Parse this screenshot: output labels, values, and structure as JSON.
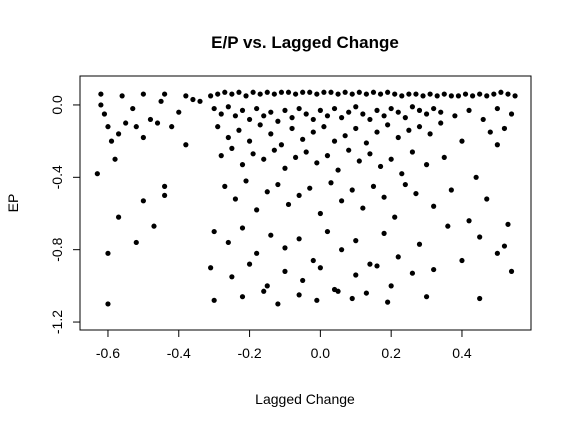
{
  "chart_data": {
    "type": "scatter",
    "title": "E/P vs. Lagged Change",
    "xlabel": "Lagged Change",
    "ylabel": "EP",
    "color": "#000000",
    "xlim": [
      -0.679,
      0.595
    ],
    "ylim": [
      -1.244,
      0.16
    ],
    "xticks": [
      -0.6,
      -0.4,
      -0.2,
      {
        "value": 0,
        "label": "0.0"
      },
      0.2,
      0.4
    ],
    "yticks": [
      -1.2,
      -0.8,
      -0.4,
      {
        "value": 0,
        "label": "0.0"
      }
    ],
    "x": [
      -0.63,
      -0.6,
      -0.6,
      -0.57,
      -0.52,
      -0.5,
      -0.47,
      -0.44,
      -0.44,
      -0.62,
      -0.61,
      -0.6,
      -0.59,
      -0.58,
      -0.55,
      -0.53,
      -0.5,
      -0.48,
      -0.45,
      -0.42,
      -0.4,
      -0.38,
      -0.36,
      -0.62,
      -0.56,
      -0.5,
      -0.44,
      -0.38,
      -0.34,
      -0.57,
      -0.52,
      -0.46,
      -0.31,
      -0.29,
      -0.27,
      -0.25,
      -0.23,
      -0.21,
      -0.19,
      -0.17,
      -0.15,
      -0.13,
      -0.11,
      -0.09,
      -0.07,
      -0.05,
      -0.03,
      -0.01,
      0.01,
      0.03,
      0.05,
      0.07,
      0.09,
      0.11,
      0.13,
      0.15,
      0.17,
      0.19,
      0.21,
      0.23,
      0.25,
      0.27,
      0.29,
      0.31,
      0.33,
      0.35,
      0.37,
      0.39,
      0.41,
      0.43,
      0.45,
      0.47,
      0.49,
      0.51,
      0.53,
      0.55,
      -0.3,
      -0.28,
      -0.26,
      -0.24,
      -0.22,
      -0.2,
      -0.18,
      -0.16,
      -0.14,
      -0.12,
      -0.1,
      -0.08,
      -0.06,
      -0.04,
      -0.02,
      0.0,
      0.02,
      0.04,
      0.06,
      0.08,
      0.1,
      0.12,
      0.14,
      0.16,
      0.18,
      0.2,
      0.22,
      0.24,
      0.26,
      0.28,
      0.3,
      0.32,
      0.34,
      0.38,
      0.42,
      0.46,
      0.5,
      0.54,
      -0.29,
      -0.26,
      -0.23,
      -0.2,
      -0.17,
      -0.14,
      -0.11,
      -0.08,
      -0.05,
      -0.02,
      0.01,
      0.04,
      0.07,
      0.1,
      0.13,
      0.16,
      0.19,
      0.22,
      0.25,
      0.28,
      0.31,
      0.34,
      0.4,
      0.48,
      0.52,
      -0.28,
      -0.25,
      -0.22,
      -0.19,
      -0.16,
      -0.13,
      -0.1,
      -0.07,
      -0.04,
      -0.01,
      0.02,
      0.05,
      0.08,
      0.11,
      0.14,
      0.17,
      0.2,
      0.23,
      0.26,
      0.3,
      0.35,
      0.44,
      0.5,
      -0.27,
      -0.24,
      -0.21,
      -0.18,
      -0.15,
      -0.12,
      -0.09,
      -0.06,
      -0.03,
      0.0,
      0.03,
      0.06,
      0.09,
      0.12,
      0.15,
      0.18,
      0.21,
      0.24,
      0.27,
      0.32,
      0.37,
      0.42,
      0.47,
      0.53,
      -0.3,
      -0.26,
      -0.22,
      -0.18,
      -0.14,
      -0.1,
      -0.06,
      -0.02,
      0.02,
      0.06,
      0.1,
      0.14,
      0.18,
      0.22,
      0.28,
      0.36,
      0.45,
      0.52,
      -0.31,
      -0.25,
      -0.2,
      -0.15,
      -0.1,
      -0.05,
      0.0,
      0.05,
      0.1,
      0.16,
      0.2,
      0.26,
      0.32,
      0.4,
      0.5,
      0.54,
      -0.3,
      -0.22,
      -0.16,
      -0.12,
      -0.06,
      -0.01,
      0.04,
      0.09,
      0.13,
      0.19,
      0.3,
      0.45
    ],
    "values": [
      -0.38,
      -1.1,
      -0.82,
      -0.62,
      -0.76,
      -0.53,
      -0.67,
      -0.45,
      -0.5,
      0.0,
      -0.05,
      -0.12,
      -0.2,
      -0.3,
      -0.1,
      -0.02,
      -0.18,
      -0.08,
      0.02,
      -0.12,
      -0.04,
      -0.22,
      0.03,
      0.06,
      0.05,
      0.06,
      0.06,
      0.05,
      0.02,
      -0.16,
      -0.12,
      -0.1,
      0.05,
      0.06,
      0.07,
      0.06,
      0.07,
      0.05,
      0.07,
      0.06,
      0.07,
      0.06,
      0.07,
      0.07,
      0.06,
      0.07,
      0.07,
      0.06,
      0.07,
      0.07,
      0.06,
      0.07,
      0.06,
      0.07,
      0.06,
      0.07,
      0.06,
      0.07,
      0.06,
      0.05,
      0.06,
      0.06,
      0.05,
      0.06,
      0.05,
      0.06,
      0.05,
      0.05,
      0.06,
      0.05,
      0.06,
      0.05,
      0.06,
      0.07,
      0.06,
      0.05,
      -0.02,
      -0.05,
      -0.01,
      -0.06,
      -0.03,
      -0.08,
      -0.02,
      -0.06,
      -0.04,
      -0.09,
      -0.03,
      -0.07,
      -0.02,
      -0.05,
      -0.08,
      -0.03,
      -0.06,
      -0.02,
      -0.07,
      -0.04,
      -0.01,
      -0.05,
      -0.08,
      -0.03,
      -0.06,
      -0.02,
      -0.04,
      -0.07,
      -0.01,
      -0.03,
      -0.05,
      -0.02,
      -0.04,
      -0.06,
      -0.03,
      -0.08,
      -0.02,
      -0.05,
      -0.12,
      -0.18,
      -0.14,
      -0.2,
      -0.11,
      -0.16,
      -0.22,
      -0.13,
      -0.19,
      -0.15,
      -0.12,
      -0.2,
      -0.17,
      -0.13,
      -0.21,
      -0.15,
      -0.11,
      -0.18,
      -0.14,
      -0.12,
      -0.16,
      -0.1,
      -0.2,
      -0.15,
      -0.13,
      -0.28,
      -0.24,
      -0.33,
      -0.27,
      -0.3,
      -0.25,
      -0.35,
      -0.29,
      -0.26,
      -0.32,
      -0.28,
      -0.36,
      -0.25,
      -0.31,
      -0.27,
      -0.34,
      -0.3,
      -0.38,
      -0.26,
      -0.33,
      -0.29,
      -0.4,
      -0.22,
      -0.45,
      -0.52,
      -0.42,
      -0.58,
      -0.48,
      -0.44,
      -0.55,
      -0.5,
      -0.46,
      -0.6,
      -0.43,
      -0.53,
      -0.47,
      -0.57,
      -0.45,
      -0.51,
      -0.62,
      -0.44,
      -0.49,
      -0.56,
      -0.47,
      -0.64,
      -0.52,
      -0.66,
      -0.7,
      -0.76,
      -0.68,
      -0.82,
      -0.72,
      -0.79,
      -0.74,
      -0.86,
      -0.7,
      -0.8,
      -0.75,
      -0.88,
      -0.71,
      -0.84,
      -0.77,
      -0.67,
      -0.73,
      -0.78,
      -0.9,
      -0.95,
      -0.88,
      -1.0,
      -0.92,
      -0.97,
      -0.9,
      -1.03,
      -0.94,
      -0.89,
      -1.0,
      -0.93,
      -0.91,
      -0.86,
      -0.82,
      -0.92,
      -1.08,
      -1.06,
      -1.03,
      -1.1,
      -1.05,
      -1.08,
      -1.02,
      -1.07,
      -1.04,
      -1.09,
      -1.06,
      -1.07
    ]
  }
}
